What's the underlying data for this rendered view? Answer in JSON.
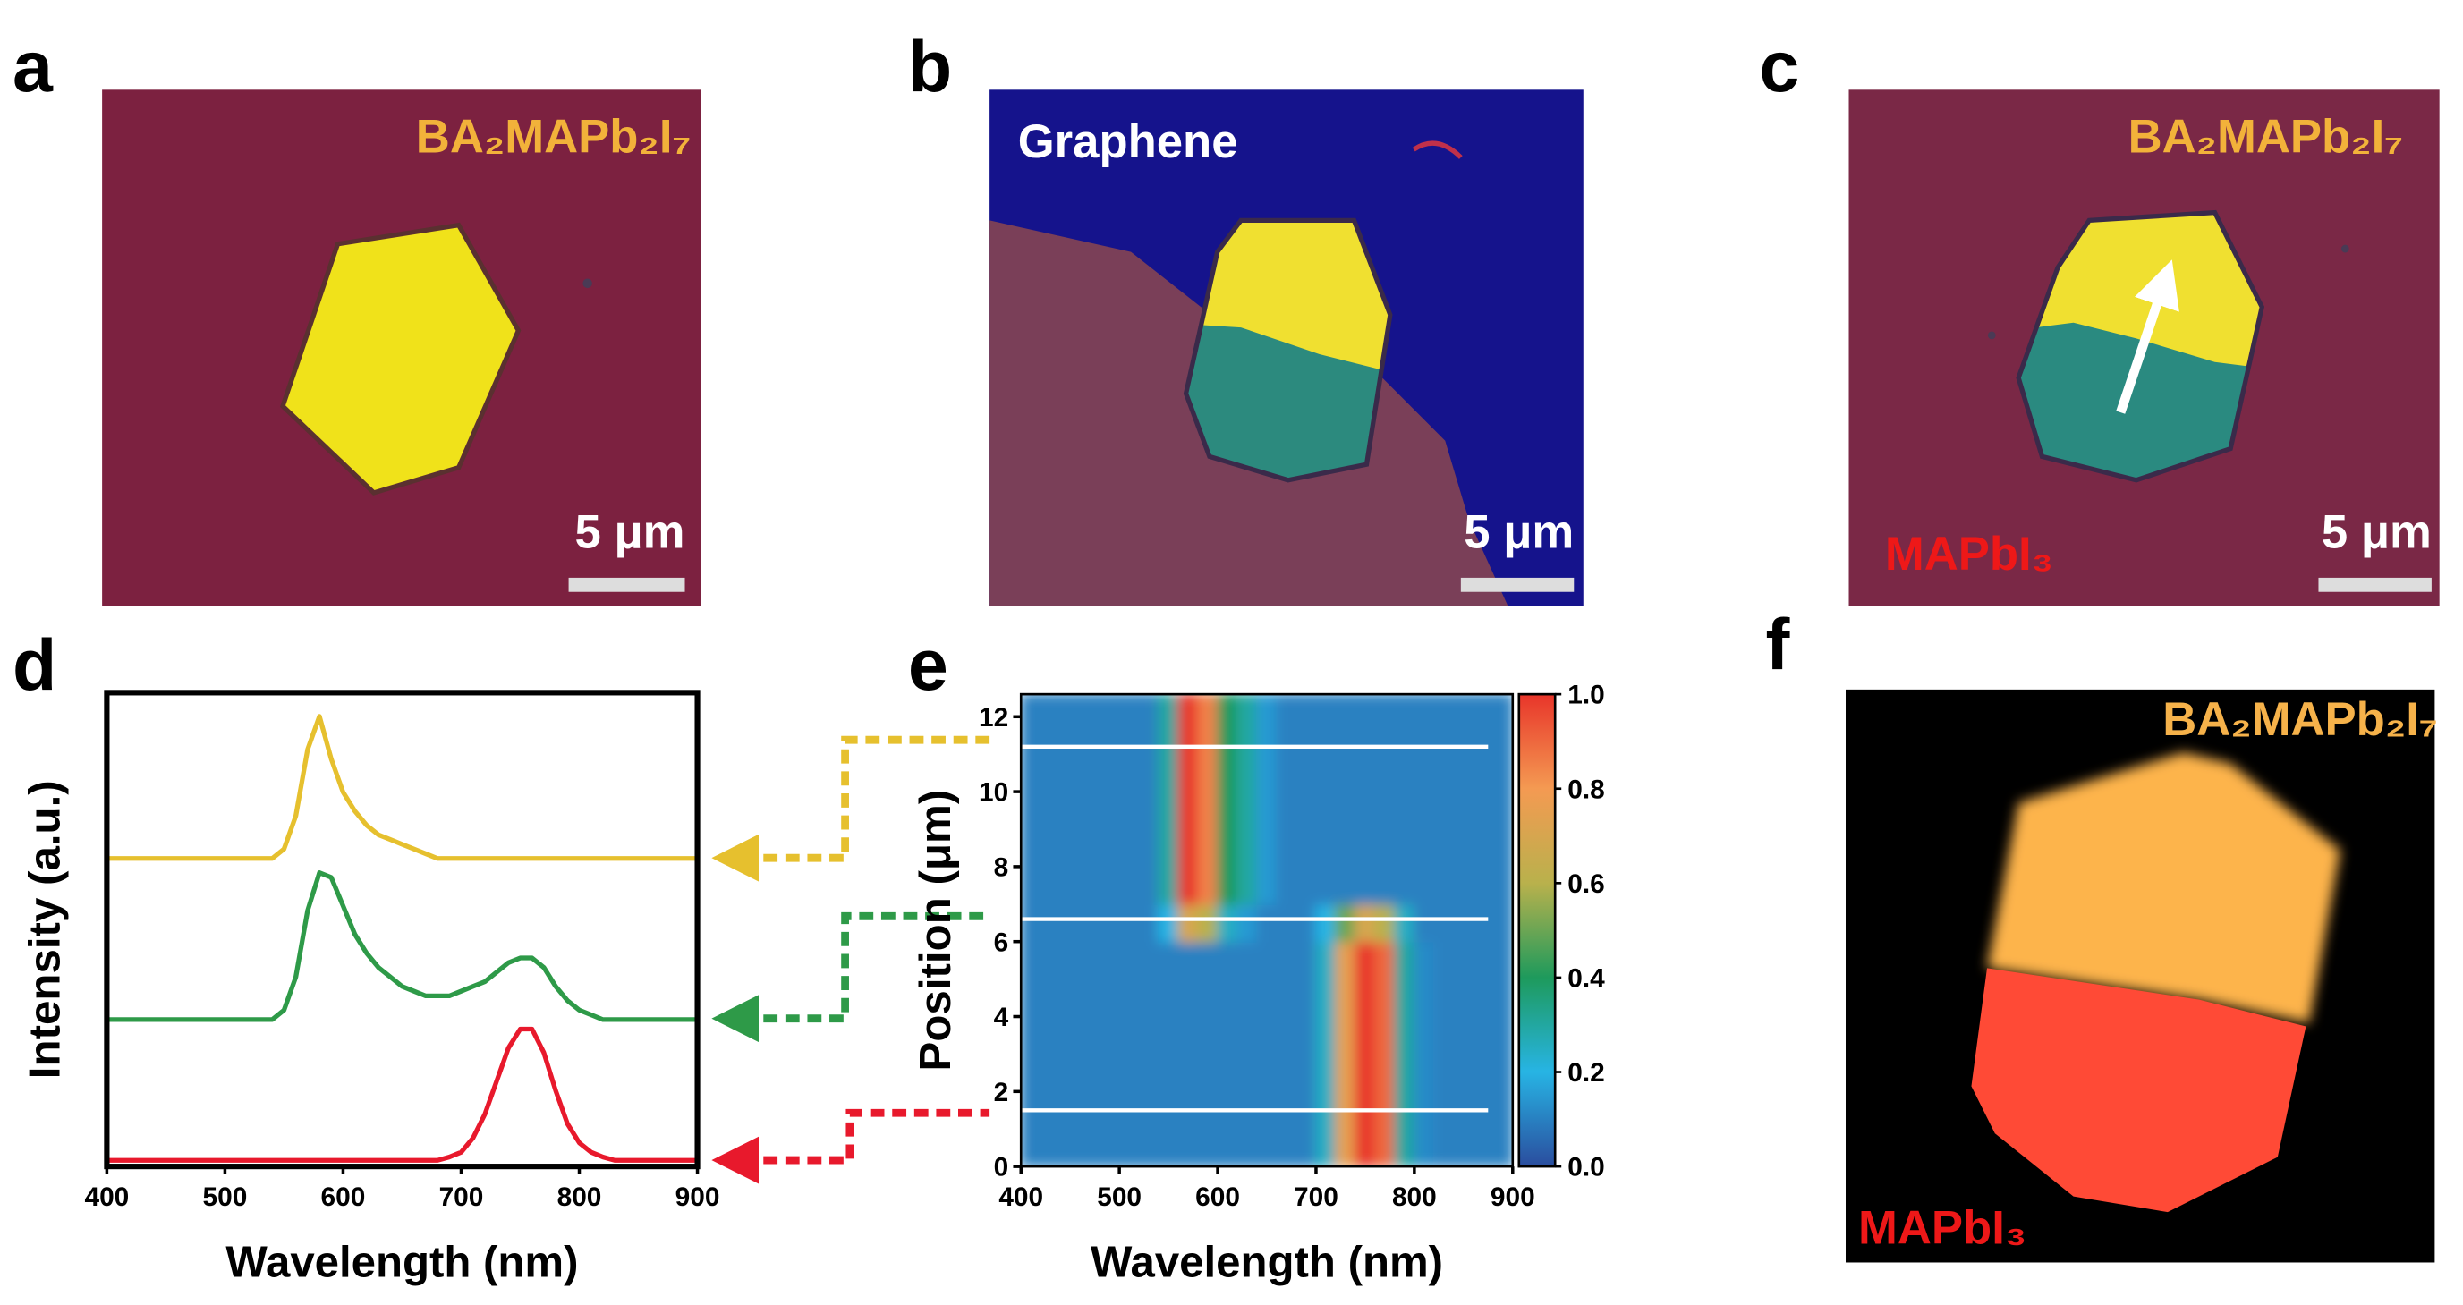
{
  "panels": {
    "labels": [
      "a",
      "b",
      "c",
      "d",
      "e",
      "f"
    ]
  },
  "images": {
    "a": {
      "label": "BA₂MAPb₂I₇",
      "scale_bar": "5 μm"
    },
    "b": {
      "label": "Graphene",
      "scale_bar": "5 μm"
    },
    "c": {
      "labels": [
        "BA₂MAPb₂I₇",
        "MAPbI₃"
      ],
      "scale_bar": "5 μm"
    },
    "f": {
      "labels": [
        "BA₂MAPb₂I₇",
        "MAPbI₃"
      ]
    }
  },
  "chart_data": [
    {
      "type": "line",
      "xlabel": "Wavelength (nm)",
      "ylabel": "Intensity (a.u.)",
      "x": [
        400,
        410,
        420,
        430,
        440,
        450,
        460,
        470,
        480,
        490,
        500,
        510,
        520,
        530,
        540,
        550,
        560,
        570,
        580,
        590,
        600,
        610,
        620,
        630,
        640,
        650,
        660,
        670,
        680,
        690,
        700,
        710,
        720,
        730,
        740,
        750,
        760,
        770,
        780,
        790,
        800,
        810,
        820,
        830,
        840,
        850,
        860,
        870,
        880,
        890,
        900
      ],
      "xlim": [
        400,
        900
      ],
      "xticks": [
        400,
        500,
        600,
        700,
        800,
        900
      ],
      "ylim": [
        0,
        1
      ],
      "series": [
        {
          "color": "#e6c02e",
          "values": [
            0.65,
            0.65,
            0.65,
            0.65,
            0.65,
            0.65,
            0.65,
            0.65,
            0.65,
            0.65,
            0.65,
            0.65,
            0.65,
            0.65,
            0.65,
            0.67,
            0.74,
            0.88,
            0.95,
            0.86,
            0.79,
            0.75,
            0.72,
            0.7,
            0.69,
            0.68,
            0.67,
            0.66,
            0.65,
            0.65,
            0.65,
            0.65,
            0.65,
            0.65,
            0.65,
            0.65,
            0.65,
            0.65,
            0.65,
            0.65,
            0.65,
            0.65,
            0.65,
            0.65,
            0.65,
            0.65,
            0.65,
            0.65,
            0.65,
            0.65,
            0.65
          ]
        },
        {
          "color": "#2e9a48",
          "values": [
            0.31,
            0.31,
            0.31,
            0.31,
            0.31,
            0.31,
            0.31,
            0.31,
            0.31,
            0.31,
            0.31,
            0.31,
            0.31,
            0.31,
            0.31,
            0.33,
            0.4,
            0.54,
            0.62,
            0.61,
            0.55,
            0.49,
            0.45,
            0.42,
            0.4,
            0.38,
            0.37,
            0.36,
            0.36,
            0.36,
            0.37,
            0.38,
            0.39,
            0.41,
            0.43,
            0.44,
            0.44,
            0.42,
            0.38,
            0.35,
            0.33,
            0.32,
            0.31,
            0.31,
            0.31,
            0.31,
            0.31,
            0.31,
            0.31,
            0.31,
            0.31
          ]
        },
        {
          "color": "#e8192c",
          "values": [
            0.013,
            0.013,
            0.013,
            0.013,
            0.013,
            0.013,
            0.013,
            0.013,
            0.013,
            0.013,
            0.013,
            0.013,
            0.013,
            0.013,
            0.013,
            0.013,
            0.013,
            0.013,
            0.013,
            0.013,
            0.013,
            0.013,
            0.013,
            0.013,
            0.013,
            0.013,
            0.013,
            0.013,
            0.013,
            0.02,
            0.03,
            0.06,
            0.11,
            0.18,
            0.25,
            0.29,
            0.29,
            0.24,
            0.16,
            0.09,
            0.05,
            0.03,
            0.02,
            0.013,
            0.013,
            0.013,
            0.013,
            0.013,
            0.013,
            0.013,
            0.013
          ]
        }
      ]
    },
    {
      "type": "heatmap",
      "xlabel": "Wavelength (nm)",
      "ylabel": "Position (μm)",
      "xlim": [
        400,
        900
      ],
      "xticks": [
        400,
        500,
        600,
        700,
        800,
        900
      ],
      "ylim": [
        0,
        12.6
      ],
      "yticks": [
        0,
        2,
        4,
        6,
        8,
        10,
        12
      ],
      "xbins": [
        400,
        420,
        440,
        460,
        480,
        500,
        520,
        540,
        560,
        580,
        600,
        620,
        640,
        660,
        680,
        700,
        720,
        740,
        760,
        780,
        800,
        820,
        840,
        860,
        880,
        900
      ],
      "ybins": [
        0,
        1,
        2,
        3,
        4,
        5,
        6,
        7,
        8,
        9,
        10,
        11,
        12,
        12.6
      ],
      "z": [
        [
          0.1,
          0.1,
          0.1,
          0.1,
          0.1,
          0.1,
          0.1,
          0.1,
          0.1,
          0.1,
          0.1,
          0.1,
          0.1,
          0.1,
          0.1,
          0.25,
          0.75,
          1.0,
          0.9,
          0.3,
          0.12,
          0.1,
          0.1,
          0.1,
          0.1
        ],
        [
          0.1,
          0.1,
          0.1,
          0.1,
          0.1,
          0.1,
          0.1,
          0.1,
          0.1,
          0.1,
          0.1,
          0.1,
          0.1,
          0.1,
          0.1,
          0.25,
          0.75,
          1.0,
          0.9,
          0.3,
          0.12,
          0.1,
          0.1,
          0.1,
          0.1
        ],
        [
          0.1,
          0.1,
          0.1,
          0.1,
          0.1,
          0.1,
          0.1,
          0.1,
          0.1,
          0.1,
          0.1,
          0.1,
          0.1,
          0.1,
          0.1,
          0.25,
          0.75,
          1.0,
          0.9,
          0.3,
          0.12,
          0.1,
          0.1,
          0.1,
          0.1
        ],
        [
          0.1,
          0.1,
          0.1,
          0.1,
          0.1,
          0.1,
          0.1,
          0.1,
          0.1,
          0.1,
          0.1,
          0.1,
          0.1,
          0.1,
          0.1,
          0.25,
          0.75,
          1.0,
          0.9,
          0.3,
          0.12,
          0.1,
          0.1,
          0.1,
          0.1
        ],
        [
          0.1,
          0.1,
          0.1,
          0.1,
          0.1,
          0.1,
          0.1,
          0.1,
          0.1,
          0.1,
          0.1,
          0.1,
          0.1,
          0.1,
          0.1,
          0.25,
          0.75,
          1.0,
          0.9,
          0.3,
          0.12,
          0.1,
          0.1,
          0.1,
          0.1
        ],
        [
          0.1,
          0.1,
          0.1,
          0.1,
          0.1,
          0.1,
          0.1,
          0.1,
          0.1,
          0.1,
          0.1,
          0.1,
          0.1,
          0.1,
          0.1,
          0.25,
          0.75,
          1.0,
          0.9,
          0.3,
          0.12,
          0.1,
          0.1,
          0.1,
          0.1
        ],
        [
          0.1,
          0.1,
          0.1,
          0.1,
          0.1,
          0.1,
          0.1,
          0.2,
          0.7,
          0.6,
          0.25,
          0.15,
          0.1,
          0.1,
          0.1,
          0.2,
          0.5,
          0.7,
          0.6,
          0.25,
          0.1,
          0.1,
          0.1,
          0.1,
          0.1
        ],
        [
          0.1,
          0.1,
          0.1,
          0.1,
          0.1,
          0.1,
          0.1,
          0.3,
          1.0,
          0.85,
          0.4,
          0.3,
          0.15,
          0.1,
          0.1,
          0.1,
          0.1,
          0.1,
          0.1,
          0.1,
          0.1,
          0.1,
          0.1,
          0.1,
          0.1
        ],
        [
          0.1,
          0.1,
          0.1,
          0.1,
          0.1,
          0.1,
          0.1,
          0.3,
          1.0,
          0.85,
          0.4,
          0.3,
          0.15,
          0.1,
          0.1,
          0.1,
          0.1,
          0.1,
          0.1,
          0.1,
          0.1,
          0.1,
          0.1,
          0.1,
          0.1
        ],
        [
          0.1,
          0.1,
          0.1,
          0.1,
          0.1,
          0.1,
          0.1,
          0.3,
          1.0,
          0.85,
          0.4,
          0.3,
          0.15,
          0.1,
          0.1,
          0.1,
          0.1,
          0.1,
          0.1,
          0.1,
          0.1,
          0.1,
          0.1,
          0.1,
          0.1
        ],
        [
          0.1,
          0.1,
          0.1,
          0.1,
          0.1,
          0.1,
          0.1,
          0.3,
          1.0,
          0.85,
          0.4,
          0.3,
          0.15,
          0.1,
          0.1,
          0.1,
          0.1,
          0.1,
          0.1,
          0.1,
          0.1,
          0.1,
          0.1,
          0.1,
          0.1
        ],
        [
          0.1,
          0.1,
          0.1,
          0.1,
          0.1,
          0.1,
          0.1,
          0.3,
          1.0,
          0.85,
          0.4,
          0.3,
          0.15,
          0.1,
          0.1,
          0.1,
          0.1,
          0.1,
          0.1,
          0.1,
          0.1,
          0.1,
          0.1,
          0.1,
          0.1
        ],
        [
          0.1,
          0.1,
          0.1,
          0.1,
          0.1,
          0.1,
          0.1,
          0.3,
          1.0,
          0.85,
          0.4,
          0.3,
          0.15,
          0.1,
          0.1,
          0.1,
          0.1,
          0.1,
          0.1,
          0.1,
          0.1,
          0.1,
          0.1,
          0.1,
          0.1
        ]
      ],
      "clim": [
        0,
        1
      ],
      "colorscale": [
        "#2a4d9e",
        "#27b4e4",
        "#1e9a5c",
        "#b9b14c",
        "#f49a52",
        "#e8352a"
      ],
      "cticks": [
        {
          "value": 0,
          "label": "0.0"
        },
        0.2,
        0.4,
        0.6,
        0.8,
        {
          "value": 1,
          "label": "1.0"
        }
      ],
      "lines": [
        1.5,
        6.6,
        11.2
      ]
    }
  ]
}
